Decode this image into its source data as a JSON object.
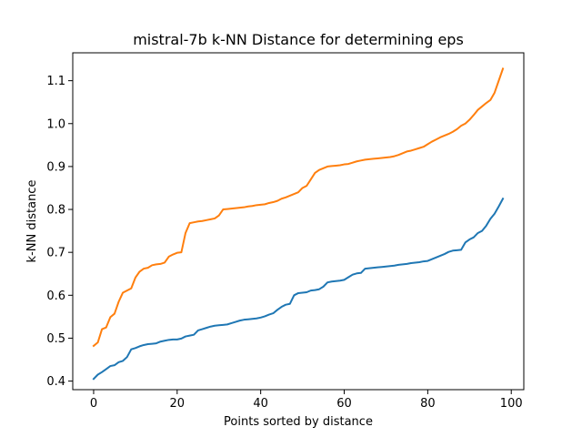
{
  "chart_data": {
    "type": "line",
    "title": "mistral-7b k-NN Distance for determining eps",
    "xlabel": "Points sorted by distance",
    "ylabel": "k-NN distance",
    "xlim": [
      -5,
      103
    ],
    "ylim": [
      0.38,
      1.165
    ],
    "xticks": [
      0,
      20,
      40,
      60,
      80,
      100
    ],
    "yticks": [
      0.4,
      0.5,
      0.6,
      0.7,
      0.8,
      0.9,
      1.0,
      1.1
    ],
    "xtick_labels": [
      "0",
      "20",
      "40",
      "60",
      "80",
      "100"
    ],
    "ytick_labels": [
      "0.4",
      "0.5",
      "0.6",
      "0.7",
      "0.8",
      "0.9",
      "1.0",
      "1.1"
    ],
    "grid": false,
    "series": [
      {
        "color": "#1f77b4",
        "x": [
          0,
          1,
          2,
          3,
          4,
          5,
          6,
          7,
          8,
          9,
          10,
          11,
          12,
          13,
          14,
          15,
          16,
          17,
          18,
          19,
          20,
          21,
          22,
          23,
          24,
          25,
          26,
          27,
          28,
          29,
          30,
          31,
          32,
          33,
          34,
          35,
          36,
          37,
          38,
          39,
          40,
          41,
          42,
          43,
          44,
          45,
          46,
          47,
          48,
          49,
          50,
          51,
          52,
          53,
          54,
          55,
          56,
          57,
          58,
          59,
          60,
          61,
          62,
          63,
          64,
          65,
          66,
          67,
          68,
          69,
          70,
          71,
          72,
          73,
          74,
          75,
          76,
          77,
          78,
          79,
          80,
          81,
          82,
          83,
          84,
          85,
          86,
          87,
          88,
          89,
          90,
          91,
          92,
          93,
          94,
          95,
          96,
          97,
          98
        ],
        "values": [
          0.405,
          0.415,
          0.421,
          0.428,
          0.435,
          0.437,
          0.444,
          0.447,
          0.456,
          0.474,
          0.477,
          0.481,
          0.484,
          0.486,
          0.487,
          0.488,
          0.492,
          0.494,
          0.496,
          0.497,
          0.497,
          0.499,
          0.504,
          0.506,
          0.508,
          0.518,
          0.521,
          0.524,
          0.527,
          0.529,
          0.53,
          0.531,
          0.532,
          0.535,
          0.538,
          0.541,
          0.543,
          0.544,
          0.545,
          0.546,
          0.548,
          0.551,
          0.555,
          0.558,
          0.566,
          0.573,
          0.578,
          0.58,
          0.6,
          0.605,
          0.606,
          0.607,
          0.611,
          0.612,
          0.614,
          0.62,
          0.63,
          0.632,
          0.633,
          0.634,
          0.636,
          0.642,
          0.648,
          0.651,
          0.652,
          0.662,
          0.663,
          0.664,
          0.665,
          0.666,
          0.667,
          0.668,
          0.669,
          0.671,
          0.672,
          0.673,
          0.675,
          0.676,
          0.677,
          0.679,
          0.68,
          0.684,
          0.688,
          0.692,
          0.696,
          0.701,
          0.704,
          0.705,
          0.706,
          0.723,
          0.73,
          0.735,
          0.745,
          0.75,
          0.762,
          0.778,
          0.79,
          0.807,
          0.825
        ]
      },
      {
        "color": "#ff7f0e",
        "x": [
          0,
          1,
          2,
          3,
          4,
          5,
          6,
          7,
          8,
          9,
          10,
          11,
          12,
          13,
          14,
          15,
          16,
          17,
          18,
          19,
          20,
          21,
          22,
          23,
          24,
          25,
          26,
          27,
          28,
          29,
          30,
          31,
          32,
          33,
          34,
          35,
          36,
          37,
          38,
          39,
          40,
          41,
          42,
          43,
          44,
          45,
          46,
          47,
          48,
          49,
          50,
          51,
          52,
          53,
          54,
          55,
          56,
          57,
          58,
          59,
          60,
          61,
          62,
          63,
          64,
          65,
          66,
          67,
          68,
          69,
          70,
          71,
          72,
          73,
          74,
          75,
          76,
          77,
          78,
          79,
          80,
          81,
          82,
          83,
          84,
          85,
          86,
          87,
          88,
          89,
          90,
          91,
          92,
          93,
          94,
          95,
          96,
          97,
          98
        ],
        "values": [
          0.482,
          0.49,
          0.521,
          0.525,
          0.549,
          0.557,
          0.585,
          0.606,
          0.611,
          0.616,
          0.641,
          0.655,
          0.662,
          0.664,
          0.67,
          0.672,
          0.673,
          0.676,
          0.69,
          0.695,
          0.699,
          0.7,
          0.745,
          0.768,
          0.77,
          0.772,
          0.773,
          0.775,
          0.777,
          0.779,
          0.786,
          0.8,
          0.801,
          0.802,
          0.803,
          0.804,
          0.805,
          0.807,
          0.808,
          0.81,
          0.811,
          0.812,
          0.815,
          0.817,
          0.82,
          0.825,
          0.828,
          0.832,
          0.836,
          0.84,
          0.85,
          0.855,
          0.87,
          0.885,
          0.892,
          0.896,
          0.9,
          0.901,
          0.902,
          0.903,
          0.905,
          0.906,
          0.909,
          0.912,
          0.914,
          0.916,
          0.917,
          0.918,
          0.919,
          0.92,
          0.921,
          0.922,
          0.924,
          0.927,
          0.931,
          0.935,
          0.937,
          0.94,
          0.943,
          0.946,
          0.952,
          0.958,
          0.963,
          0.968,
          0.972,
          0.976,
          0.981,
          0.987,
          0.995,
          1.0,
          1.009,
          1.02,
          1.032,
          1.04,
          1.048,
          1.055,
          1.072,
          1.1,
          1.128
        ]
      }
    ]
  }
}
